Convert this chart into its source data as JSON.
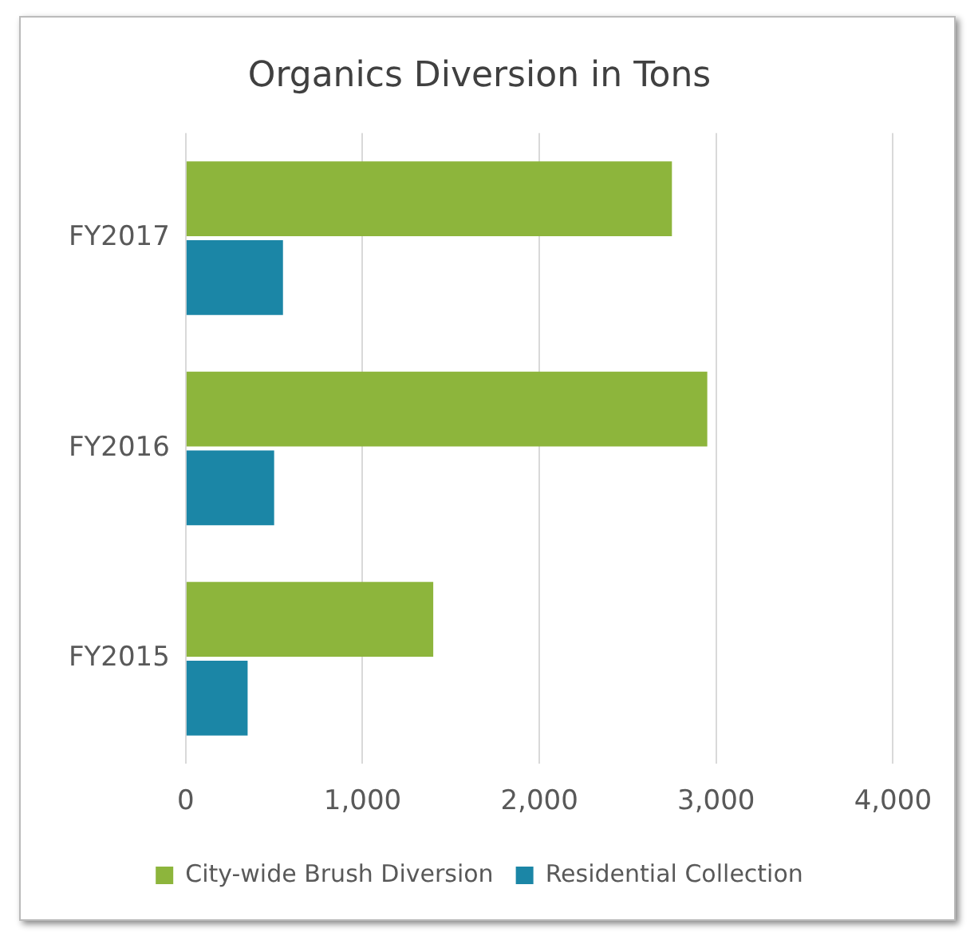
{
  "chart_data": {
    "type": "bar",
    "orientation": "horizontal",
    "title": "Organics Diversion in Tons",
    "categories": [
      "FY2017",
      "FY2016",
      "FY2015"
    ],
    "series": [
      {
        "name": "City-wide Brush Diversion",
        "color": "#8db53c",
        "values": [
          2750,
          2950,
          1400
        ]
      },
      {
        "name": "Residential Collection",
        "color": "#1b86a6",
        "values": [
          550,
          500,
          350
        ]
      }
    ],
    "xlim": [
      0,
      4000
    ],
    "xticks": [
      {
        "value": 0,
        "label": "0"
      },
      {
        "value": 1000,
        "label": "1,000"
      },
      {
        "value": 2000,
        "label": "2,000"
      },
      {
        "value": 3000,
        "label": "3,000"
      },
      {
        "value": 4000,
        "label": "4,000"
      }
    ],
    "grid": "x",
    "legend": "bottom"
  }
}
